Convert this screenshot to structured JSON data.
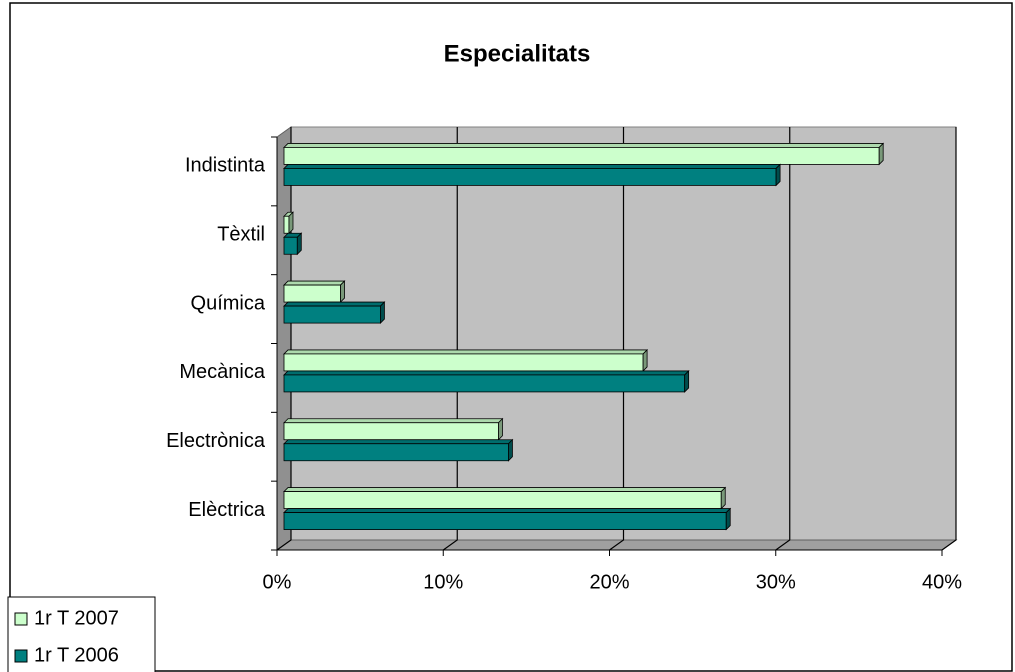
{
  "chart_data": {
    "type": "bar3d_h",
    "title": "Especialitats",
    "categories": [
      "Elèctrica",
      "Electrònica",
      "Mecànica",
      "Química",
      "Tèxtil",
      "Indistinta"
    ],
    "series": [
      {
        "name": "1r T 2007",
        "color": "#ccffcc",
        "values": [
          26.3,
          12.9,
          21.6,
          3.4,
          0.3,
          35.8
        ]
      },
      {
        "name": "1r T 2006",
        "color": "#008080",
        "values": [
          26.6,
          13.5,
          24.1,
          5.8,
          0.8,
          29.6
        ]
      }
    ],
    "xlim": [
      0,
      40
    ],
    "xticks": [
      {
        "value": 0,
        "label": "0%"
      },
      {
        "value": 10,
        "label": "10%"
      },
      {
        "value": 20,
        "label": "20%"
      },
      {
        "value": 30,
        "label": "30%"
      },
      {
        "value": 40,
        "label": "40%"
      }
    ],
    "grid": true,
    "legend": "bottom-left"
  }
}
